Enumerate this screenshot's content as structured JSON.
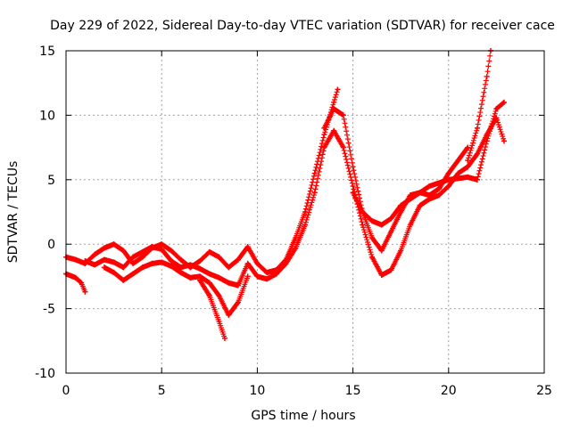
{
  "chart_data": {
    "type": "scatter",
    "title": "Day 229 of 2022, Sidereal Day-to-day VTEC variation (SDTVAR) for receiver cace",
    "xlabel": "GPS time / hours",
    "ylabel": "SDTVAR / TECUs",
    "xlim": [
      0,
      25
    ],
    "ylim": [
      -10,
      15
    ],
    "x_ticks": [
      0,
      5,
      10,
      15,
      20,
      25
    ],
    "y_ticks": [
      -10,
      -5,
      0,
      5,
      10,
      15
    ],
    "x_tick_labels": [
      "0",
      "5",
      "10",
      "15",
      "20",
      "25"
    ],
    "y_tick_labels": [
      "-10",
      "-5",
      "0",
      "5",
      "10",
      "15"
    ],
    "grid": true,
    "marker": "+",
    "marker_color": "#ff0000",
    "series": [
      {
        "name": "track-1",
        "points": [
          [
            0,
            -1
          ],
          [
            0.5,
            -1.2
          ],
          [
            1,
            -1.5
          ],
          [
            1.5,
            -0.8
          ],
          [
            2,
            -0.3
          ],
          [
            2.5,
            0
          ],
          [
            3,
            -0.5
          ],
          [
            3.5,
            -1.5
          ],
          [
            4,
            -1
          ],
          [
            4.5,
            -0.3
          ],
          [
            5,
            0
          ],
          [
            5.5,
            -0.5
          ],
          [
            6,
            -1.2
          ],
          [
            6.5,
            -1.8
          ],
          [
            7,
            -1.3
          ],
          [
            7.5,
            -0.6
          ],
          [
            8,
            -1
          ],
          [
            8.5,
            -1.8
          ],
          [
            9,
            -1.2
          ],
          [
            9.5,
            -0.2
          ],
          [
            10,
            -1.5
          ],
          [
            10.5,
            -2.2
          ],
          [
            11,
            -2
          ],
          [
            11.5,
            -1.2
          ],
          [
            12,
            0.5
          ],
          [
            12.5,
            2.5
          ],
          [
            13,
            5.5
          ],
          [
            13.5,
            8.5
          ],
          [
            14,
            11
          ],
          [
            14.2,
            12
          ]
        ]
      },
      {
        "name": "track-2",
        "points": [
          [
            1,
            -1.3
          ],
          [
            1.5,
            -1.6
          ],
          [
            2,
            -1.2
          ],
          [
            2.5,
            -1.4
          ],
          [
            3,
            -1.8
          ],
          [
            3.5,
            -1
          ],
          [
            4,
            -0.6
          ],
          [
            4.5,
            -0.2
          ],
          [
            5,
            -0.4
          ],
          [
            5.5,
            -1.3
          ],
          [
            6,
            -1.8
          ],
          [
            6.5,
            -1.6
          ],
          [
            7,
            -1.9
          ],
          [
            7.5,
            -2.3
          ],
          [
            8,
            -2.6
          ],
          [
            8.5,
            -3
          ],
          [
            9,
            -3.2
          ],
          [
            9.5,
            -1.5
          ],
          [
            10,
            -2.5
          ],
          [
            10.5,
            -2.7
          ],
          [
            11,
            -2.3
          ],
          [
            11.5,
            -1.5
          ],
          [
            12,
            -0.3
          ],
          [
            12.5,
            1.5
          ],
          [
            13,
            4
          ],
          [
            13.5,
            7.5
          ],
          [
            14,
            8.8
          ],
          [
            14.5,
            7.5
          ],
          [
            15,
            4.5
          ],
          [
            15.5,
            1.5
          ],
          [
            16,
            -1
          ],
          [
            16.5,
            -2.4
          ],
          [
            17,
            -2
          ],
          [
            17.5,
            -0.5
          ],
          [
            18,
            1.5
          ],
          [
            18.5,
            3
          ],
          [
            19,
            3.5
          ],
          [
            19.5,
            3.8
          ],
          [
            20,
            4.5
          ],
          [
            20.5,
            5.5
          ],
          [
            21,
            6
          ],
          [
            21.5,
            7
          ],
          [
            22,
            8.5
          ],
          [
            22.5,
            9.8
          ],
          [
            22.9,
            8
          ]
        ]
      },
      {
        "name": "track-3",
        "points": [
          [
            0,
            -2.3
          ],
          [
            0.5,
            -2.6
          ],
          [
            0.8,
            -3
          ],
          [
            1,
            -3.7
          ]
        ]
      },
      {
        "name": "track-4",
        "points": [
          [
            2,
            -1.8
          ],
          [
            2.5,
            -2.2
          ],
          [
            3,
            -2.8
          ],
          [
            3.5,
            -2.3
          ],
          [
            4,
            -1.8
          ],
          [
            4.5,
            -1.5
          ],
          [
            5,
            -1.4
          ],
          [
            5.5,
            -1.7
          ],
          [
            6,
            -2.2
          ],
          [
            6.5,
            -2.6
          ],
          [
            7,
            -2.5
          ],
          [
            7.5,
            -3
          ],
          [
            8,
            -4
          ],
          [
            8.5,
            -5.5
          ],
          [
            9,
            -4.5
          ],
          [
            9.5,
            -2.5
          ]
        ]
      },
      {
        "name": "track-5",
        "points": [
          [
            7,
            -2.8
          ],
          [
            7.5,
            -4
          ],
          [
            8,
            -6
          ],
          [
            8.3,
            -7.3
          ]
        ]
      },
      {
        "name": "track-6",
        "points": [
          [
            13.5,
            9
          ],
          [
            14,
            10.5
          ],
          [
            14.5,
            10
          ],
          [
            15,
            6
          ],
          [
            15.5,
            2.5
          ],
          [
            16,
            0.5
          ],
          [
            16.5,
            -0.5
          ],
          [
            17,
            1
          ],
          [
            17.5,
            2.5
          ],
          [
            18,
            3.8
          ],
          [
            18.5,
            4
          ],
          [
            19,
            3.8
          ],
          [
            19.5,
            4.3
          ],
          [
            20,
            5.5
          ],
          [
            20.5,
            6.5
          ],
          [
            21,
            7.5
          ]
        ]
      },
      {
        "name": "track-7",
        "points": [
          [
            15,
            4
          ],
          [
            15.5,
            2.5
          ],
          [
            16,
            1.8
          ],
          [
            16.5,
            1.5
          ],
          [
            17,
            2
          ],
          [
            17.5,
            3
          ],
          [
            18,
            3.5
          ],
          [
            19,
            4.5
          ],
          [
            20,
            5
          ],
          [
            21,
            5.2
          ],
          [
            21.5,
            5
          ],
          [
            22,
            8
          ],
          [
            22.5,
            10.5
          ],
          [
            22.9,
            11
          ]
        ]
      },
      {
        "name": "track-8",
        "points": [
          [
            21,
            6.5
          ],
          [
            21.5,
            9
          ],
          [
            22,
            13
          ],
          [
            22.2,
            15
          ]
        ]
      }
    ]
  }
}
